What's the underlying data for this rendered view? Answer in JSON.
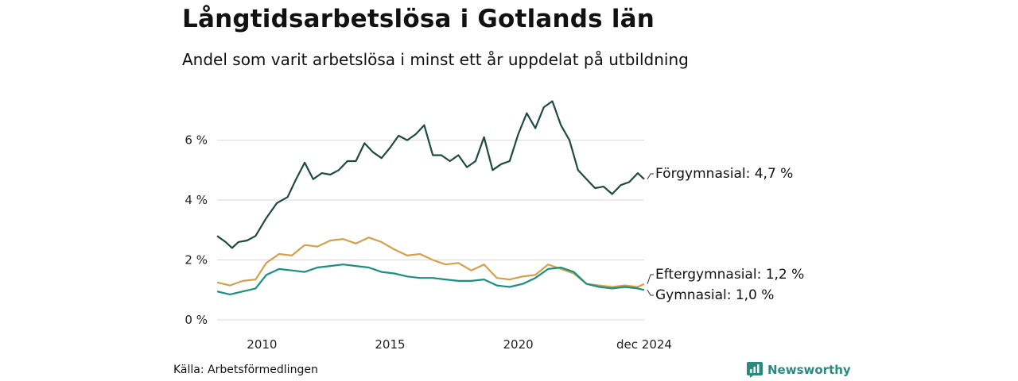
{
  "title": "Långtidsarbetslösa i Gotlands län",
  "subtitle": "Andel som varit arbetslösa i minst ett år uppdelat på utbildning",
  "source": "Källa: Arbetsförmedlingen",
  "brand": {
    "name": "Newsworthy",
    "icon": "newsworthy-logo-icon",
    "color": "#2b8a7e"
  },
  "chart_data": {
    "type": "line",
    "x_range": [
      "2008-04",
      "2024-12"
    ],
    "x_ticks": [
      {
        "x": "2010-01",
        "label": "2010"
      },
      {
        "x": "2015-01",
        "label": "2015"
      },
      {
        "x": "2020-01",
        "label": "2020"
      },
      {
        "x": "2024-12",
        "label": "dec 2024"
      }
    ],
    "ylim": [
      0,
      7.5
    ],
    "y_ticks": [
      {
        "value": 0,
        "label": "0 %"
      },
      {
        "value": 2,
        "label": "2 %"
      },
      {
        "value": 4,
        "label": "4 %"
      },
      {
        "value": 6,
        "label": "6 %"
      }
    ],
    "grid": "horizontal",
    "series": [
      {
        "name": "Förgymnasial",
        "end_label": "Förgymnasial: 4,7 %",
        "color": "#1f4a40",
        "points": [
          [
            "2008-04",
            2.8
          ],
          [
            "2008-08",
            2.6
          ],
          [
            "2008-11",
            2.4
          ],
          [
            "2009-02",
            2.6
          ],
          [
            "2009-06",
            2.65
          ],
          [
            "2009-10",
            2.8
          ],
          [
            "2010-03",
            3.4
          ],
          [
            "2010-08",
            3.9
          ],
          [
            "2011-01",
            4.1
          ],
          [
            "2011-05",
            4.7
          ],
          [
            "2011-09",
            5.25
          ],
          [
            "2012-01",
            4.7
          ],
          [
            "2012-05",
            4.9
          ],
          [
            "2012-09",
            4.85
          ],
          [
            "2013-01",
            5.0
          ],
          [
            "2013-05",
            5.3
          ],
          [
            "2013-09",
            5.3
          ],
          [
            "2014-01",
            5.9
          ],
          [
            "2014-05",
            5.6
          ],
          [
            "2014-09",
            5.4
          ],
          [
            "2015-01",
            5.75
          ],
          [
            "2015-05",
            6.15
          ],
          [
            "2015-09",
            6.0
          ],
          [
            "2016-01",
            6.2
          ],
          [
            "2016-05",
            6.5
          ],
          [
            "2016-09",
            5.5
          ],
          [
            "2017-01",
            5.5
          ],
          [
            "2017-05",
            5.3
          ],
          [
            "2017-09",
            5.5
          ],
          [
            "2018-01",
            5.1
          ],
          [
            "2018-05",
            5.3
          ],
          [
            "2018-09",
            6.1
          ],
          [
            "2019-01",
            5.0
          ],
          [
            "2019-05",
            5.2
          ],
          [
            "2019-09",
            5.3
          ],
          [
            "2020-01",
            6.2
          ],
          [
            "2020-05",
            6.9
          ],
          [
            "2020-09",
            6.4
          ],
          [
            "2021-01",
            7.1
          ],
          [
            "2021-05",
            7.3
          ],
          [
            "2021-09",
            6.5
          ],
          [
            "2022-01",
            6.0
          ],
          [
            "2022-05",
            5.0
          ],
          [
            "2022-09",
            4.7
          ],
          [
            "2023-01",
            4.4
          ],
          [
            "2023-05",
            4.45
          ],
          [
            "2023-09",
            4.2
          ],
          [
            "2024-01",
            4.5
          ],
          [
            "2024-05",
            4.6
          ],
          [
            "2024-09",
            4.9
          ],
          [
            "2024-12",
            4.7
          ]
        ]
      },
      {
        "name": "Eftergymnasial",
        "end_label": "Eftergymnasial: 1,2 %",
        "color": "#d4a04a",
        "points": [
          [
            "2008-04",
            1.25
          ],
          [
            "2008-10",
            1.15
          ],
          [
            "2009-04",
            1.3
          ],
          [
            "2009-10",
            1.35
          ],
          [
            "2010-03",
            1.9
          ],
          [
            "2010-09",
            2.2
          ],
          [
            "2011-03",
            2.15
          ],
          [
            "2011-09",
            2.5
          ],
          [
            "2012-03",
            2.45
          ],
          [
            "2012-09",
            2.65
          ],
          [
            "2013-03",
            2.7
          ],
          [
            "2013-09",
            2.55
          ],
          [
            "2014-03",
            2.75
          ],
          [
            "2014-09",
            2.6
          ],
          [
            "2015-03",
            2.35
          ],
          [
            "2015-09",
            2.15
          ],
          [
            "2016-03",
            2.2
          ],
          [
            "2016-09",
            2.0
          ],
          [
            "2017-03",
            1.85
          ],
          [
            "2017-09",
            1.9
          ],
          [
            "2018-03",
            1.65
          ],
          [
            "2018-09",
            1.85
          ],
          [
            "2019-03",
            1.4
          ],
          [
            "2019-09",
            1.35
          ],
          [
            "2020-03",
            1.45
          ],
          [
            "2020-09",
            1.5
          ],
          [
            "2021-03",
            1.85
          ],
          [
            "2021-09",
            1.7
          ],
          [
            "2022-03",
            1.55
          ],
          [
            "2022-09",
            1.2
          ],
          [
            "2023-03",
            1.15
          ],
          [
            "2023-09",
            1.1
          ],
          [
            "2024-03",
            1.15
          ],
          [
            "2024-09",
            1.1
          ],
          [
            "2024-12",
            1.2
          ]
        ]
      },
      {
        "name": "Gymnasial",
        "end_label": "Gymnasial: 1,0 %",
        "color": "#1a9080",
        "points": [
          [
            "2008-04",
            0.95
          ],
          [
            "2008-10",
            0.85
          ],
          [
            "2009-04",
            0.95
          ],
          [
            "2009-10",
            1.05
          ],
          [
            "2010-03",
            1.5
          ],
          [
            "2010-09",
            1.7
          ],
          [
            "2011-03",
            1.65
          ],
          [
            "2011-09",
            1.6
          ],
          [
            "2012-03",
            1.75
          ],
          [
            "2012-09",
            1.8
          ],
          [
            "2013-03",
            1.85
          ],
          [
            "2013-09",
            1.8
          ],
          [
            "2014-03",
            1.75
          ],
          [
            "2014-09",
            1.6
          ],
          [
            "2015-03",
            1.55
          ],
          [
            "2015-09",
            1.45
          ],
          [
            "2016-03",
            1.4
          ],
          [
            "2016-09",
            1.4
          ],
          [
            "2017-03",
            1.35
          ],
          [
            "2017-09",
            1.3
          ],
          [
            "2018-03",
            1.3
          ],
          [
            "2018-09",
            1.35
          ],
          [
            "2019-03",
            1.15
          ],
          [
            "2019-09",
            1.1
          ],
          [
            "2020-03",
            1.2
          ],
          [
            "2020-09",
            1.4
          ],
          [
            "2021-03",
            1.7
          ],
          [
            "2021-09",
            1.75
          ],
          [
            "2022-03",
            1.6
          ],
          [
            "2022-09",
            1.2
          ],
          [
            "2023-03",
            1.1
          ],
          [
            "2023-09",
            1.05
          ],
          [
            "2024-03",
            1.1
          ],
          [
            "2024-09",
            1.05
          ],
          [
            "2024-12",
            1.0
          ]
        ]
      }
    ]
  }
}
